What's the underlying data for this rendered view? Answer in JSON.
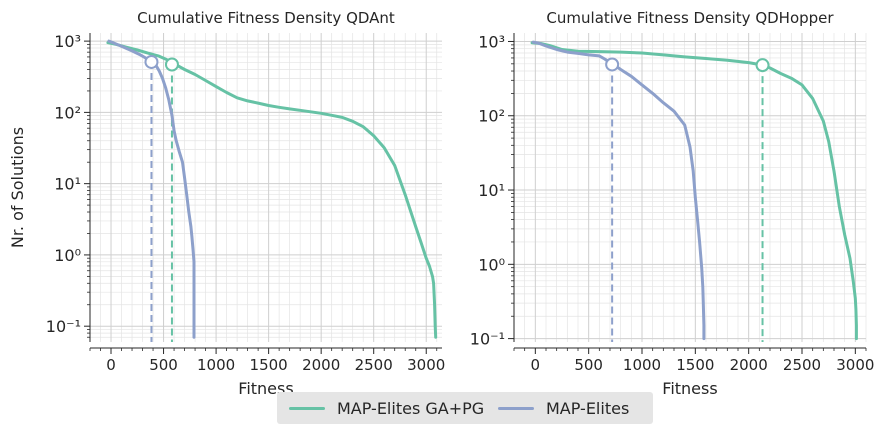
{
  "chart_data": [
    {
      "type": "line",
      "title": "Cumulative Fitness Density QDAnt",
      "xlabel": "Fitness",
      "ylabel": "Nr. of Solutions",
      "y_scale": "log",
      "xlim": [
        -200,
        3150
      ],
      "ylim": [
        0.06,
        1300
      ],
      "x_ticks": [
        0,
        500,
        1000,
        1500,
        2000,
        2500,
        3000
      ],
      "x_tick_labels": [
        "0",
        "500",
        "1000",
        "1500",
        "2000",
        "2500",
        "3000"
      ],
      "y_ticks": [
        0.1,
        1,
        10,
        100,
        1000
      ],
      "y_tick_labels": [
        "10⁻¹",
        "10⁰",
        "10¹",
        "10²",
        "10³"
      ],
      "grid": true,
      "series": [
        {
          "name": "MAP-Elites GA+PG",
          "color": "#66c2a5",
          "x": [
            -30,
            50,
            150,
            250,
            350,
            450,
            520,
            580,
            700,
            800,
            900,
            1000,
            1100,
            1200,
            1300,
            1400,
            1500,
            1600,
            1700,
            1800,
            1900,
            2000,
            2100,
            2200,
            2300,
            2400,
            2500,
            2600,
            2700,
            2800,
            2900,
            2950,
            3000,
            3030,
            3060,
            3070,
            3080,
            3085,
            3090
          ],
          "y": [
            950,
            900,
            820,
            750,
            680,
            620,
            560,
            500,
            400,
            340,
            280,
            230,
            190,
            160,
            145,
            135,
            125,
            118,
            112,
            107,
            102,
            97,
            91,
            85,
            75,
            63,
            47,
            32,
            18,
            7,
            2.5,
            1.5,
            0.9,
            0.7,
            0.5,
            0.4,
            0.2,
            0.1,
            0.07
          ]
        },
        {
          "name": "MAP-Elites",
          "color": "#8da0cb",
          "x": [
            -20,
            20,
            100,
            200,
            280,
            330,
            370,
            400,
            430,
            460,
            490,
            520,
            550,
            580,
            600,
            620,
            650,
            680,
            700,
            720,
            740,
            760,
            770,
            780,
            790,
            790,
            790
          ],
          "y": [
            1000,
            950,
            850,
            730,
            640,
            580,
            530,
            500,
            450,
            380,
            300,
            220,
            150,
            90,
            55,
            40,
            28,
            20,
            12,
            7,
            4,
            2.5,
            1.8,
            1.2,
            0.8,
            0.3,
            0.07
          ]
        }
      ],
      "annotations": [
        {
          "series": "MAP-Elites",
          "x": 385,
          "y": 510,
          "marker": "circle",
          "dashed_line_to_axis": true
        },
        {
          "series": "MAP-Elites GA+PG",
          "x": 580,
          "y": 470,
          "marker": "circle",
          "dashed_line_to_axis": true
        }
      ]
    },
    {
      "type": "line",
      "title": "Cumulative Fitness Density QDHopper",
      "xlabel": "Fitness",
      "ylabel": "",
      "y_scale": "log",
      "xlim": [
        -200,
        3100
      ],
      "ylim": [
        0.09,
        1300
      ],
      "x_ticks": [
        0,
        500,
        1000,
        1500,
        2000,
        2500,
        3000
      ],
      "x_tick_labels": [
        "0",
        "500",
        "1000",
        "1500",
        "2000",
        "2500",
        "3000"
      ],
      "y_ticks": [
        0.1,
        1,
        10,
        100,
        1000
      ],
      "y_tick_labels": [
        "10⁻¹",
        "10⁰",
        "10¹",
        "10²",
        "10³"
      ],
      "grid": true,
      "series": [
        {
          "name": "MAP-Elites GA+PG",
          "color": "#66c2a5",
          "x": [
            -30,
            50,
            150,
            250,
            400,
            600,
            800,
            1000,
            1200,
            1400,
            1600,
            1800,
            2000,
            2100,
            2150,
            2200,
            2300,
            2400,
            2500,
            2600,
            2700,
            2750,
            2800,
            2850,
            2900,
            2950,
            2980,
            3000,
            3005,
            3010,
            3010
          ],
          "y": [
            960,
            940,
            870,
            780,
            740,
            730,
            720,
            700,
            660,
            620,
            590,
            560,
            520,
            490,
            470,
            440,
            370,
            320,
            260,
            170,
            85,
            45,
            18,
            6,
            2.5,
            1.2,
            0.6,
            0.35,
            0.25,
            0.15,
            0.1
          ]
        },
        {
          "name": "MAP-Elites",
          "color": "#8da0cb",
          "x": [
            -20,
            30,
            100,
            200,
            300,
            400,
            500,
            600,
            650,
            700,
            720,
            760,
            800,
            900,
            1000,
            1100,
            1200,
            1300,
            1400,
            1450,
            1480,
            1500,
            1520,
            1540,
            1560,
            1570,
            1575,
            1580,
            1580
          ],
          "y": [
            980,
            950,
            870,
            780,
            720,
            690,
            660,
            640,
            580,
            520,
            490,
            460,
            420,
            340,
            260,
            200,
            150,
            115,
            75,
            38,
            18,
            8,
            4,
            2,
            0.9,
            0.5,
            0.3,
            0.15,
            0.1
          ]
        }
      ],
      "annotations": [
        {
          "series": "MAP-Elites",
          "x": 720,
          "y": 490,
          "marker": "circle",
          "dashed_line_to_axis": true
        },
        {
          "series": "MAP-Elites GA+PG",
          "x": 2130,
          "y": 480,
          "marker": "circle",
          "dashed_line_to_axis": true
        }
      ]
    }
  ],
  "legend": {
    "placement": "bottom-center",
    "items": [
      {
        "label": "MAP-Elites GA+PG",
        "color": "#66c2a5"
      },
      {
        "label": "MAP-Elites",
        "color": "#8da0cb"
      }
    ]
  }
}
